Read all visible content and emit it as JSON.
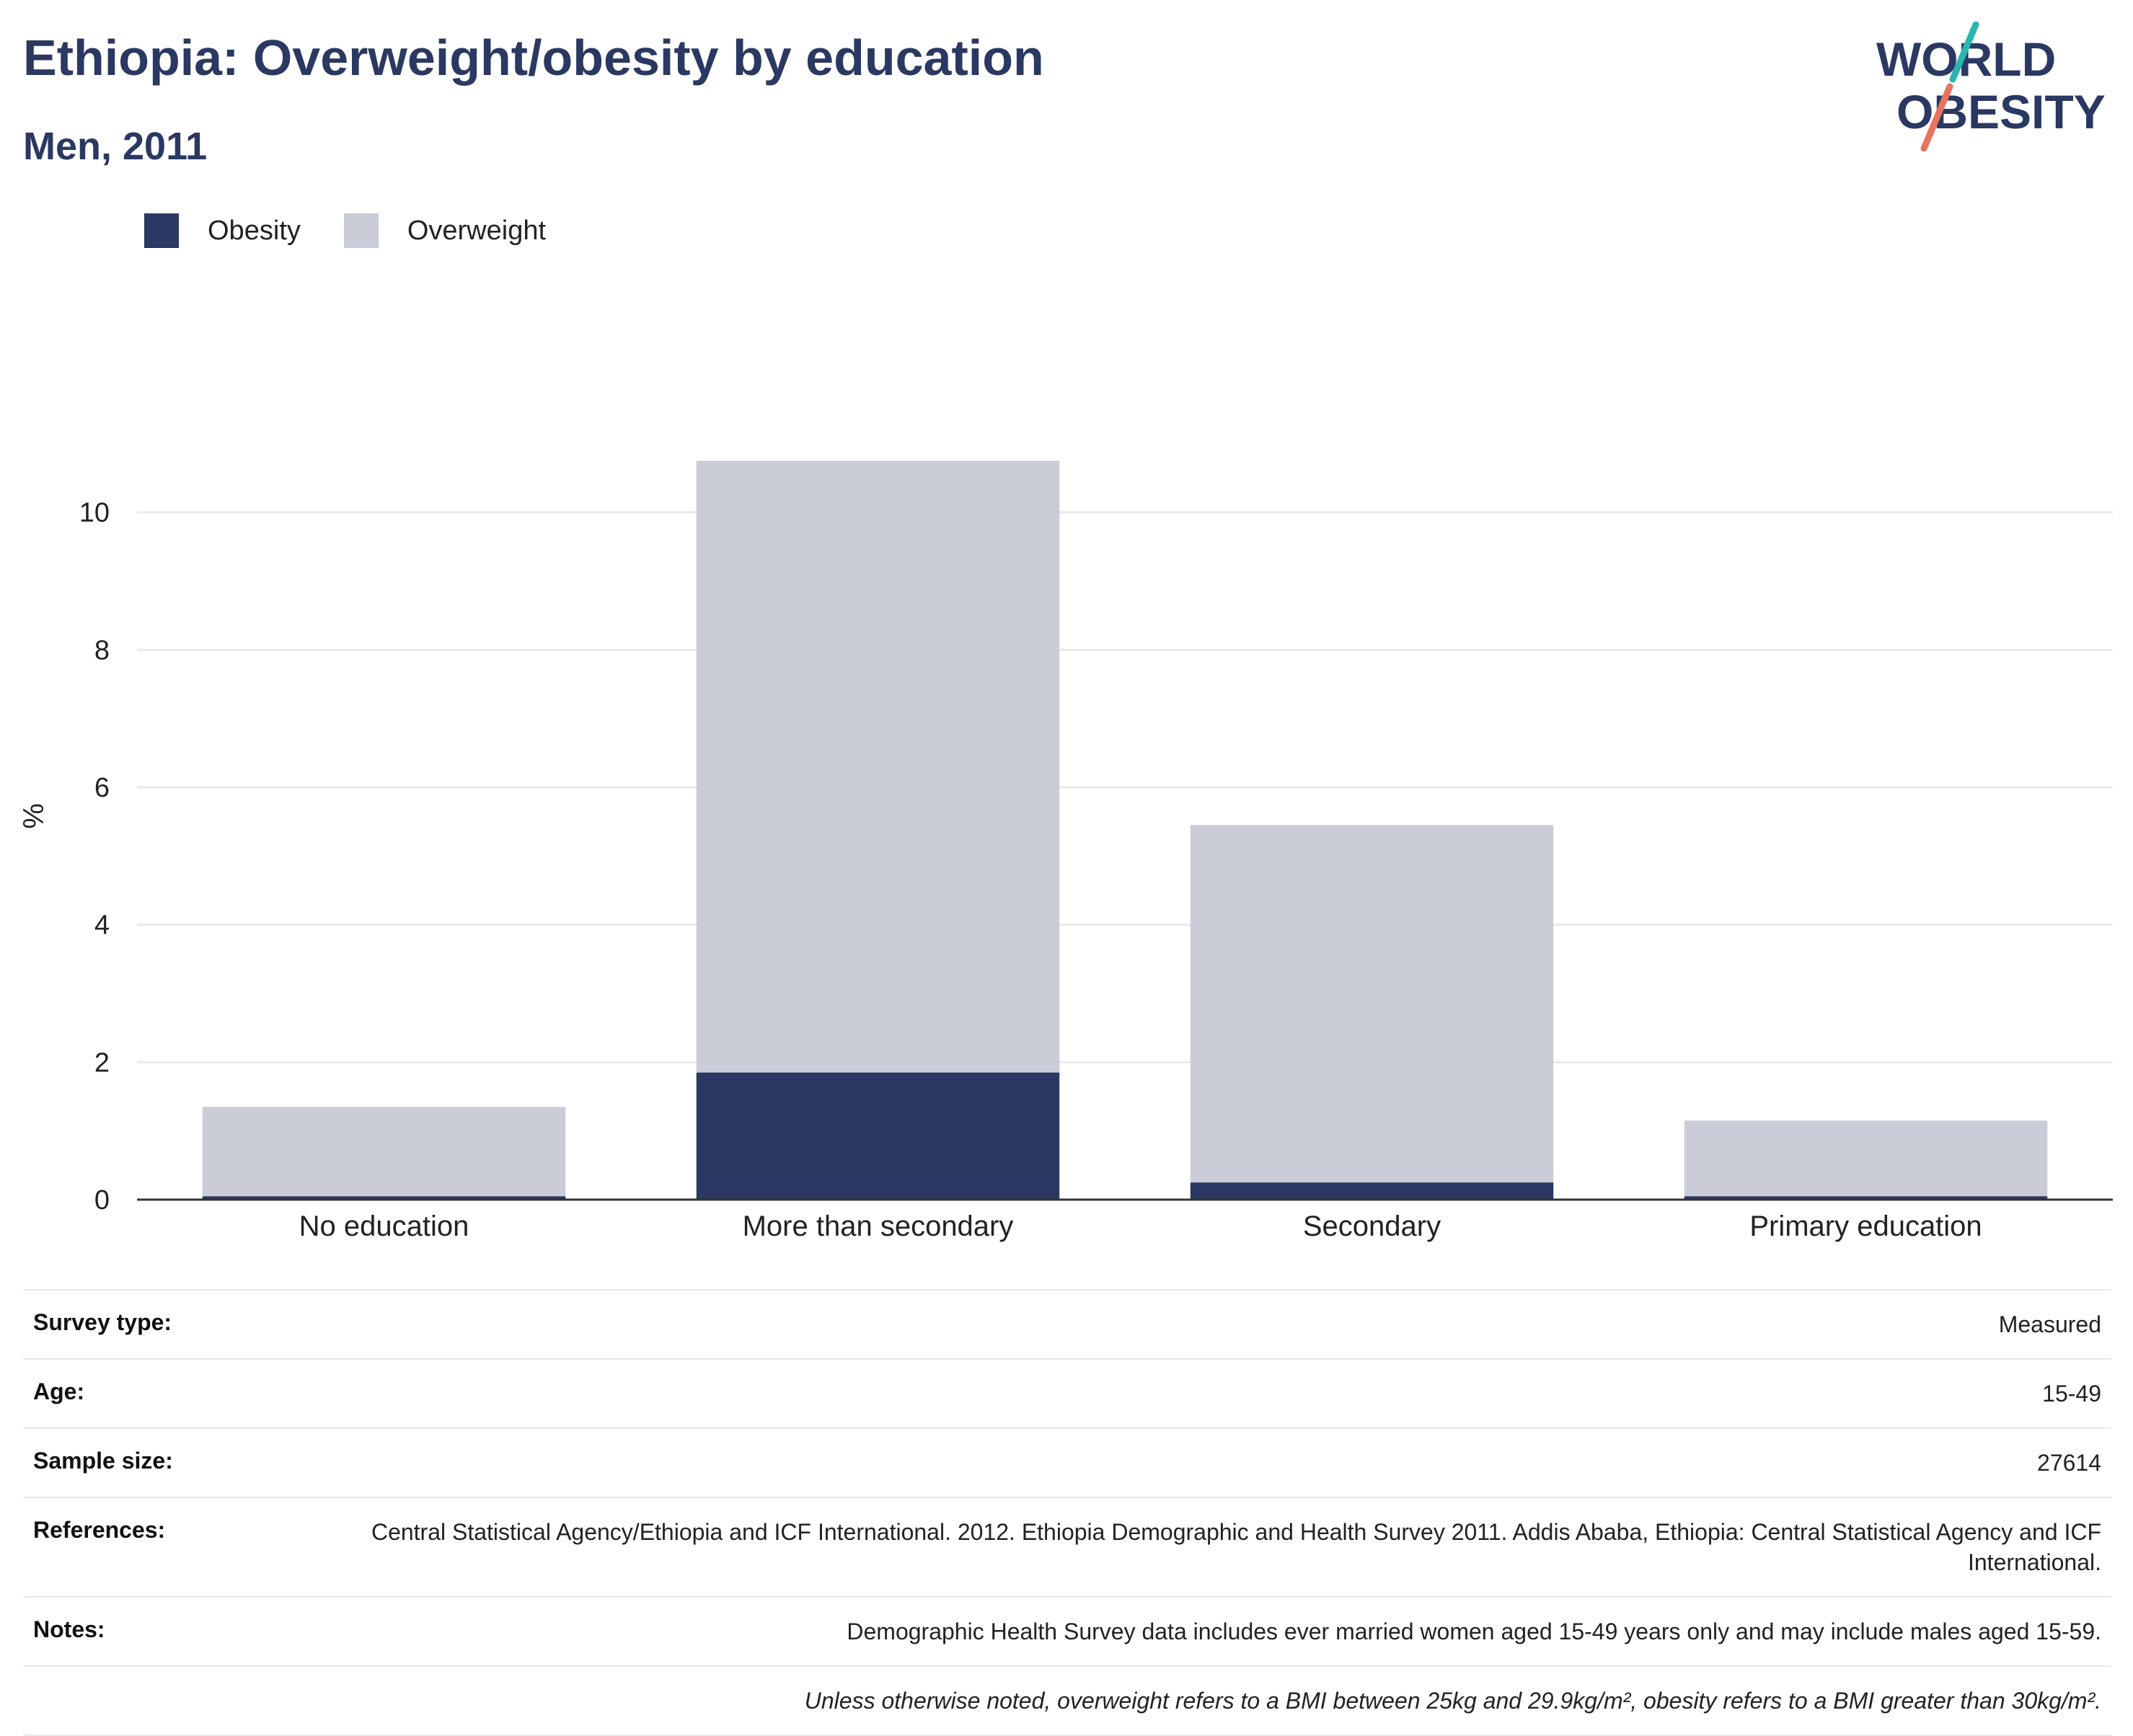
{
  "header": {
    "title": "Ethiopia: Overweight/obesity by education",
    "subtitle": "Men, 2011"
  },
  "logo": {
    "line1": "WORLD",
    "line2": "OBESITY",
    "accent_top": "#2bb5b0",
    "accent_bottom": "#e8735f"
  },
  "colors": {
    "obesity": "#2a3862",
    "overweight": "#caccd7",
    "grid": "#e8e9ee",
    "axis": "#333333"
  },
  "chart_data": {
    "type": "bar",
    "stacked": true,
    "categories": [
      "No education",
      "More than secondary",
      "Secondary",
      "Primary education"
    ],
    "series": [
      {
        "name": "Obesity",
        "values": [
          0.05,
          1.85,
          0.25,
          0.05
        ]
      },
      {
        "name": "Overweight",
        "values": [
          1.3,
          8.9,
          5.2,
          1.1
        ]
      }
    ],
    "ylabel": "%",
    "ylim": [
      0,
      12
    ],
    "yticks": [
      0,
      2,
      4,
      6,
      8,
      10
    ],
    "grid": true,
    "legend": "top-left"
  },
  "meta": {
    "survey_type": {
      "label": "Survey type:",
      "value": "Measured"
    },
    "age": {
      "label": "Age:",
      "value": "15-49"
    },
    "sample_size": {
      "label": "Sample size:",
      "value": "27614"
    },
    "references": {
      "label": "References:",
      "value": "Central Statistical Agency/Ethiopia and ICF International. 2012. Ethiopia Demographic and Health Survey 2011. Addis Ababa, Ethiopia: Central Statistical Agency and ICF International."
    },
    "notes": {
      "label": "Notes:",
      "value": "Demographic Health Survey data includes ever married women aged 15-49 years only and may include males aged 15-59."
    },
    "definition": "Unless otherwise noted, overweight refers to a BMI between 25kg and 29.9kg/m², obesity refers to a BMI greater than 30kg/m²."
  }
}
